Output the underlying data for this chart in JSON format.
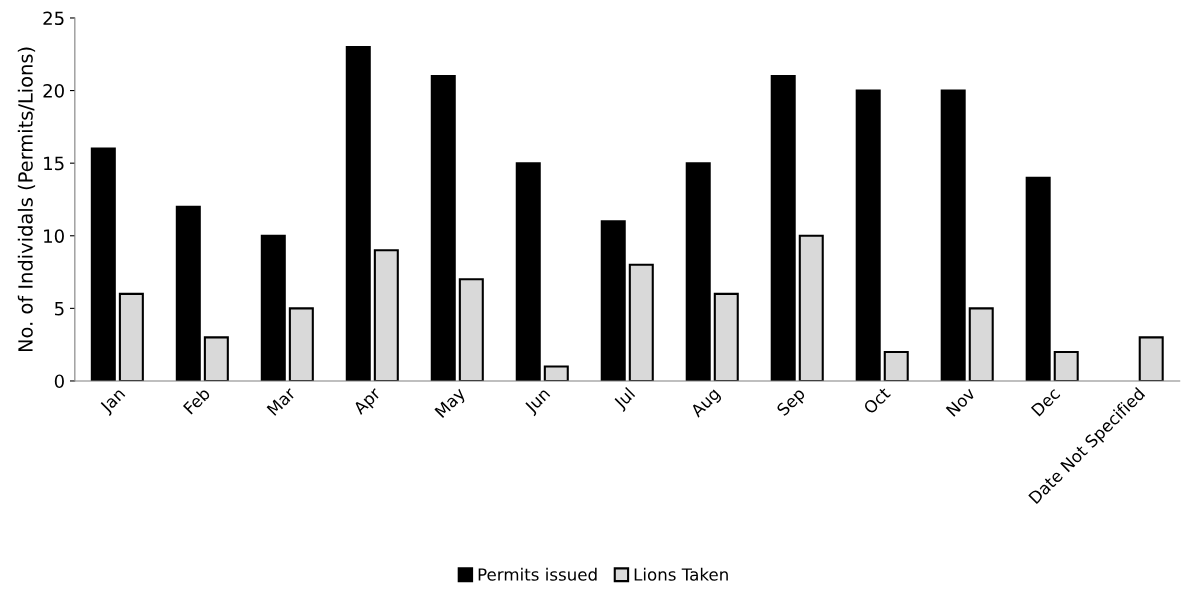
{
  "chart_data": {
    "type": "bar",
    "ylabel": "No. of Individals (Permits/Lions)",
    "categories": [
      "Jan",
      "Feb",
      "Mar",
      "Apr",
      "May",
      "Jun",
      "Jul",
      "Aug",
      "Sep",
      "Oct",
      "Nov",
      "Dec",
      "Date Not Specified"
    ],
    "series": [
      {
        "name": "Permits issued",
        "color": "#000000",
        "values": [
          16,
          12,
          10,
          23,
          21,
          15,
          11,
          15,
          21,
          20,
          20,
          14,
          null
        ]
      },
      {
        "name": "Lions Taken",
        "color": "#d9d9d9",
        "values": [
          6,
          3,
          5,
          9,
          7,
          1,
          8,
          6,
          10,
          2,
          5,
          2,
          3
        ]
      }
    ],
    "ylim": [
      0,
      25
    ],
    "yticks": [
      0,
      5,
      10,
      15,
      20,
      25
    ],
    "grid": false,
    "legend": "bottom"
  }
}
